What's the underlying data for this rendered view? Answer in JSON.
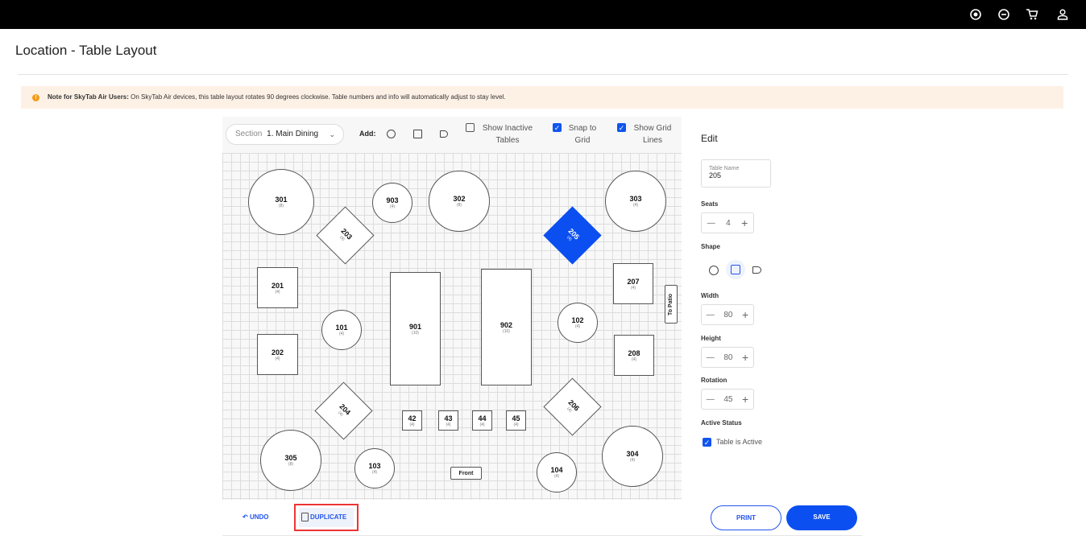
{
  "topbar": {
    "icons": [
      "record-icon",
      "chat-icon",
      "cart-icon",
      "user-icon"
    ]
  },
  "page": {
    "title": "Location - Table Layout"
  },
  "note": {
    "bold": "Note for SkyTab Air Users:",
    "text": " On SkyTab Air devices, this table layout rotates 90 degrees clockwise. Table numbers and info will automatically adjust to stay level."
  },
  "toolbar": {
    "section_label": "Section",
    "section_value": "1. Main Dining",
    "add_label": "Add:",
    "show_inactive": {
      "label1": "Show Inactive",
      "label2": "Tables",
      "checked": false
    },
    "snap": {
      "label1": "Snap to",
      "label2": "Grid",
      "checked": true
    },
    "grid": {
      "label1": "Show Grid",
      "label2": "Lines",
      "checked": true
    }
  },
  "tables": [
    {
      "num": "301",
      "seats": "(8)",
      "shape": "circle"
    },
    {
      "num": "903",
      "seats": "(4)",
      "shape": "circle"
    },
    {
      "num": "302",
      "seats": "(8)",
      "shape": "circle"
    },
    {
      "num": "303",
      "seats": "(4)",
      "shape": "circle"
    },
    {
      "num": "203",
      "seats": "(4)",
      "shape": "square",
      "rotation": 45
    },
    {
      "num": "205",
      "seats": "(4)",
      "shape": "square",
      "rotation": 45,
      "selected": true
    },
    {
      "num": "201",
      "seats": "(4)",
      "shape": "square"
    },
    {
      "num": "202",
      "seats": "(4)",
      "shape": "square"
    },
    {
      "num": "101",
      "seats": "(4)",
      "shape": "circle"
    },
    {
      "num": "901",
      "seats": "(10)",
      "shape": "rect"
    },
    {
      "num": "902",
      "seats": "(10)",
      "shape": "rect"
    },
    {
      "num": "102",
      "seats": "(4)",
      "shape": "circle"
    },
    {
      "num": "207",
      "seats": "(4)",
      "shape": "square"
    },
    {
      "num": "208",
      "seats": "(4)",
      "shape": "square"
    },
    {
      "num": "204",
      "seats": "(4)",
      "shape": "square",
      "rotation": 45
    },
    {
      "num": "206",
      "seats": "(4)",
      "shape": "square",
      "rotation": 45
    },
    {
      "num": "42",
      "seats": "(4)",
      "shape": "square"
    },
    {
      "num": "43",
      "seats": "(4)",
      "shape": "square"
    },
    {
      "num": "44",
      "seats": "(4)",
      "shape": "square"
    },
    {
      "num": "45",
      "seats": "(4)",
      "shape": "square"
    },
    {
      "num": "305",
      "seats": "(8)",
      "shape": "circle"
    },
    {
      "num": "103",
      "seats": "(4)",
      "shape": "circle"
    },
    {
      "num": "104",
      "seats": "(4)",
      "shape": "circle"
    },
    {
      "num": "304",
      "seats": "(4)",
      "shape": "circle"
    }
  ],
  "labels": [
    {
      "text": "To Patio"
    },
    {
      "text": "Front"
    }
  ],
  "edit": {
    "title": "Edit",
    "table_name_label": "Table Name",
    "table_name": "205",
    "seats_label": "Seats",
    "seats": "4",
    "shape_label": "Shape",
    "shape_selected": "square",
    "width_label": "Width",
    "width": "80",
    "height_label": "Height",
    "height": "80",
    "rotation_label": "Rotation",
    "rotation": "45",
    "active_label": "Active Status",
    "active_text": "Table is Active",
    "active": true
  },
  "footer": {
    "undo": "UNDO",
    "duplicate": "DUPLICATE",
    "print": "PRINT",
    "save": "SAVE"
  },
  "colors": {
    "accent": "#0b4ff0",
    "highlight": "#ee3333",
    "note_bg": "#fdf1e6"
  }
}
